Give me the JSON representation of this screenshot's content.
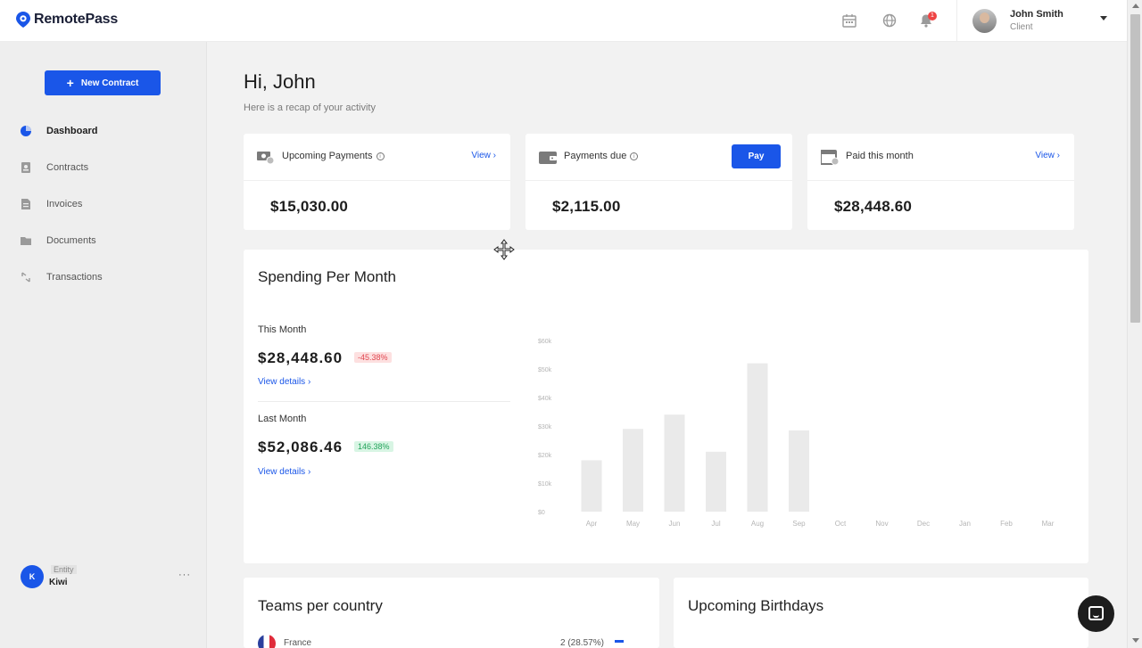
{
  "app": {
    "brand": "RemotePass"
  },
  "header": {
    "notification_count": "1",
    "user_name": "John Smith",
    "user_role": "Client",
    "icons": [
      "calendar-icon",
      "globe-icon",
      "bell-icon",
      "chevron-down-icon"
    ]
  },
  "sidebar": {
    "new_contract_label": "New Contract",
    "items": [
      {
        "label": "Dashboard",
        "icon": "dashboard-icon",
        "active": true
      },
      {
        "label": "Contracts",
        "icon": "contract-icon",
        "active": false
      },
      {
        "label": "Invoices",
        "icon": "invoice-icon",
        "active": false
      },
      {
        "label": "Documents",
        "icon": "folder-icon",
        "active": false
      },
      {
        "label": "Transactions",
        "icon": "transfer-icon",
        "active": false
      }
    ],
    "entity": {
      "initial": "K",
      "tag": "Entity",
      "name": "Kiwi",
      "more": "···"
    }
  },
  "main": {
    "greeting": "Hi, John",
    "recap": "Here is a recap of your activity",
    "cards": [
      {
        "title": "Upcoming Payments",
        "value": "$15,030.00",
        "action": "View ›"
      },
      {
        "title": "Payments due",
        "value": "$2,115.00",
        "action": "Pay"
      },
      {
        "title": "Paid this month",
        "value": "$28,448.60",
        "action": "View ›"
      }
    ],
    "spending": {
      "title": "Spending Per Month",
      "this_month_label": "This Month",
      "this_month_value": "$28,448.60",
      "this_month_change": "-45.38%",
      "last_month_label": "Last Month",
      "last_month_value": "$52,086.46",
      "last_month_change": "146.38%",
      "details_label": "View details ›"
    },
    "teams": {
      "title": "Teams per country",
      "country": "France",
      "count": "2 (28.57%)"
    },
    "birthdays": {
      "title": "Upcoming Birthdays"
    }
  },
  "colors": {
    "accent": "#1a56e8",
    "negative": "#e0464f",
    "positive": "#22a35a",
    "bar": "#eaeaea"
  },
  "chart_data": {
    "type": "bar",
    "categories": [
      "Apr",
      "May",
      "Jun",
      "Jul",
      "Aug",
      "Sep",
      "Oct",
      "Nov",
      "Dec",
      "Jan",
      "Feb",
      "Mar"
    ],
    "values": [
      18000,
      29000,
      34000,
      21000,
      52000,
      28500,
      0,
      0,
      0,
      0,
      0,
      0
    ],
    "y_ticks": [
      "$0",
      "$10k",
      "$20k",
      "$30k",
      "$40k",
      "$50k",
      "$60k"
    ],
    "ylim": [
      0,
      60000
    ],
    "grid": false
  }
}
